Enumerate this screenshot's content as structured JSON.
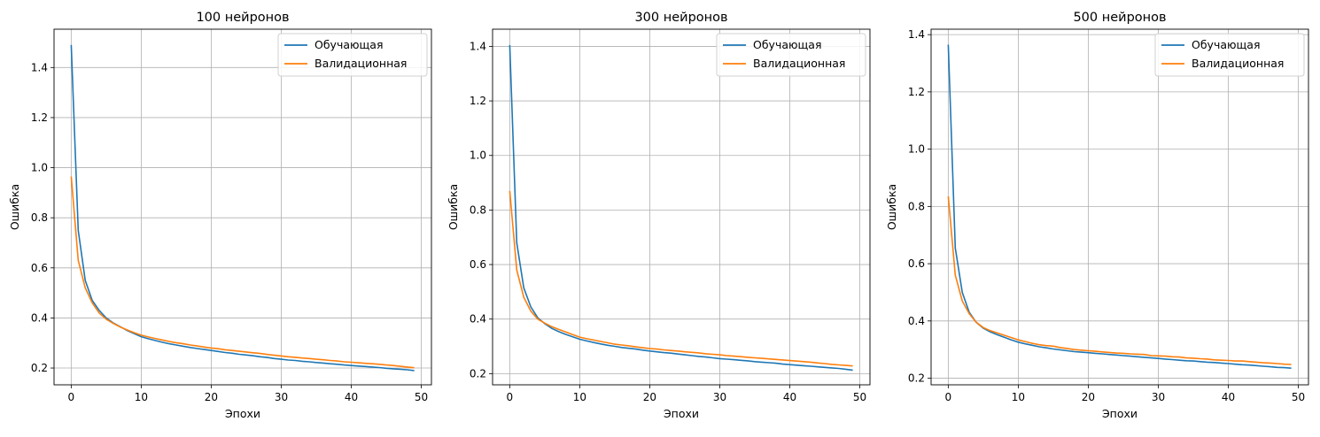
{
  "chart_data": [
    {
      "type": "line",
      "title": "100 нейронов",
      "xlabel": "Эпохи",
      "ylabel": "Ошибка",
      "xlim": [
        -2.45,
        51.45
      ],
      "ylim": [
        0.133,
        1.553
      ],
      "xticks": [
        0,
        10,
        20,
        30,
        40,
        50
      ],
      "yticks": [
        0.2,
        0.4,
        0.6,
        0.8,
        1.0,
        1.2,
        1.4
      ],
      "grid": true,
      "legend": "top-right",
      "series": [
        {
          "name": "Обучающая",
          "color": "#1f77b4",
          "values": [
            1.49,
            0.75,
            0.55,
            0.47,
            0.43,
            0.4,
            0.38,
            0.365,
            0.35,
            0.337,
            0.325,
            0.317,
            0.31,
            0.303,
            0.297,
            0.292,
            0.287,
            0.282,
            0.278,
            0.274,
            0.27,
            0.266,
            0.262,
            0.259,
            0.255,
            0.252,
            0.249,
            0.245,
            0.242,
            0.238,
            0.235,
            0.232,
            0.23,
            0.227,
            0.225,
            0.222,
            0.22,
            0.217,
            0.215,
            0.212,
            0.21,
            0.208,
            0.206,
            0.204,
            0.202,
            0.199,
            0.197,
            0.195,
            0.193,
            0.19
          ]
        },
        {
          "name": "Валидационная",
          "color": "#ff7f0e",
          "values": [
            0.965,
            0.63,
            0.52,
            0.46,
            0.42,
            0.395,
            0.378,
            0.364,
            0.352,
            0.341,
            0.331,
            0.324,
            0.318,
            0.312,
            0.306,
            0.301,
            0.297,
            0.292,
            0.288,
            0.284,
            0.28,
            0.277,
            0.273,
            0.27,
            0.267,
            0.264,
            0.261,
            0.258,
            0.254,
            0.251,
            0.248,
            0.245,
            0.243,
            0.24,
            0.238,
            0.235,
            0.233,
            0.23,
            0.228,
            0.225,
            0.223,
            0.221,
            0.219,
            0.217,
            0.215,
            0.212,
            0.21,
            0.207,
            0.204,
            0.201
          ]
        }
      ]
    },
    {
      "type": "line",
      "title": "300 нейронов",
      "xlabel": "Эпохи",
      "ylabel": "Ошибка",
      "xlim": [
        -2.45,
        51.45
      ],
      "ylim": [
        0.159,
        1.463
      ],
      "xticks": [
        0,
        10,
        20,
        30,
        40,
        50
      ],
      "yticks": [
        0.2,
        0.4,
        0.6,
        0.8,
        1.0,
        1.2,
        1.4
      ],
      "grid": true,
      "legend": "top-right",
      "series": [
        {
          "name": "Обучающая",
          "color": "#1f77b4",
          "values": [
            1.405,
            0.68,
            0.515,
            0.445,
            0.405,
            0.383,
            0.366,
            0.354,
            0.344,
            0.335,
            0.326,
            0.32,
            0.314,
            0.309,
            0.304,
            0.3,
            0.296,
            0.293,
            0.29,
            0.286,
            0.283,
            0.28,
            0.277,
            0.275,
            0.272,
            0.269,
            0.266,
            0.263,
            0.261,
            0.258,
            0.255,
            0.253,
            0.251,
            0.249,
            0.247,
            0.244,
            0.242,
            0.24,
            0.238,
            0.235,
            0.233,
            0.231,
            0.229,
            0.227,
            0.225,
            0.223,
            0.221,
            0.219,
            0.216,
            0.213
          ]
        },
        {
          "name": "Валидационная",
          "color": "#ff7f0e",
          "values": [
            0.87,
            0.58,
            0.48,
            0.43,
            0.4,
            0.385,
            0.372,
            0.362,
            0.353,
            0.343,
            0.334,
            0.328,
            0.323,
            0.318,
            0.313,
            0.308,
            0.305,
            0.302,
            0.298,
            0.295,
            0.292,
            0.29,
            0.287,
            0.285,
            0.283,
            0.28,
            0.278,
            0.276,
            0.273,
            0.271,
            0.269,
            0.266,
            0.264,
            0.262,
            0.26,
            0.258,
            0.256,
            0.254,
            0.252,
            0.25,
            0.248,
            0.246,
            0.244,
            0.242,
            0.239,
            0.237,
            0.234,
            0.232,
            0.23,
            0.228
          ]
        }
      ]
    },
    {
      "type": "line",
      "title": "500 нейронов",
      "xlabel": "Эпохи",
      "ylabel": "Ошибка",
      "xlim": [
        -2.45,
        51.45
      ],
      "ylim": [
        0.177,
        1.419
      ],
      "xticks": [
        0,
        10,
        20,
        30,
        40,
        50
      ],
      "yticks": [
        0.2,
        0.4,
        0.6,
        0.8,
        1.0,
        1.2,
        1.4
      ],
      "grid": true,
      "legend": "top-right",
      "series": [
        {
          "name": "Обучающая",
          "color": "#1f77b4",
          "values": [
            1.365,
            0.655,
            0.5,
            0.43,
            0.395,
            0.375,
            0.362,
            0.352,
            0.343,
            0.334,
            0.326,
            0.32,
            0.315,
            0.31,
            0.306,
            0.302,
            0.299,
            0.296,
            0.293,
            0.291,
            0.289,
            0.287,
            0.285,
            0.283,
            0.281,
            0.279,
            0.277,
            0.275,
            0.273,
            0.271,
            0.269,
            0.267,
            0.265,
            0.263,
            0.261,
            0.26,
            0.258,
            0.256,
            0.255,
            0.253,
            0.251,
            0.249,
            0.247,
            0.246,
            0.244,
            0.242,
            0.24,
            0.238,
            0.237,
            0.235
          ]
        },
        {
          "name": "Валидационная",
          "color": "#ff7f0e",
          "values": [
            0.835,
            0.56,
            0.47,
            0.425,
            0.395,
            0.377,
            0.366,
            0.358,
            0.35,
            0.342,
            0.334,
            0.328,
            0.322,
            0.317,
            0.314,
            0.312,
            0.307,
            0.304,
            0.3,
            0.298,
            0.296,
            0.294,
            0.292,
            0.29,
            0.288,
            0.287,
            0.285,
            0.284,
            0.283,
            0.279,
            0.278,
            0.277,
            0.275,
            0.274,
            0.271,
            0.27,
            0.268,
            0.267,
            0.264,
            0.263,
            0.262,
            0.26,
            0.26,
            0.258,
            0.256,
            0.254,
            0.253,
            0.251,
            0.249,
            0.248
          ]
        }
      ]
    }
  ]
}
